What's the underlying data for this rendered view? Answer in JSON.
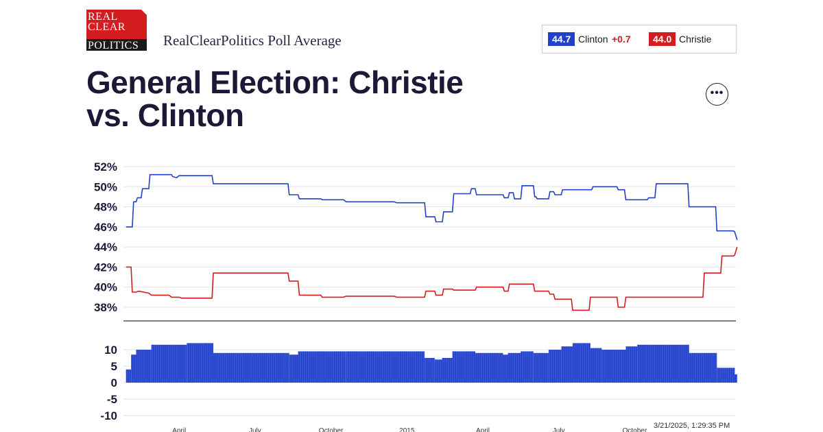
{
  "brand": {
    "logo_lines": [
      "REAL",
      "CLEAR",
      "POLITICS"
    ]
  },
  "header": {
    "subtitle": "RealClearPolitics Poll Average"
  },
  "legend": {
    "clinton": {
      "value": "44.7",
      "name": "Clinton",
      "change": "+0.7",
      "color": "#2240c8"
    },
    "christie": {
      "value": "44.0",
      "name": "Christie",
      "color": "#d31c1e"
    }
  },
  "title": "General Election: Christie vs. Clinton",
  "menu": {
    "more_label": "•••"
  },
  "timestamp": "3/21/2025, 1:29:35 PM",
  "chart_data": [
    {
      "type": "line",
      "title": "",
      "ylim": [
        37,
        53
      ],
      "y_ticks": [
        "52%",
        "50%",
        "48%",
        "46%",
        "44%",
        "42%",
        "40%",
        "38%"
      ],
      "y_tick_values": [
        52,
        50,
        48,
        46,
        44,
        42,
        40,
        38
      ],
      "x_ticks": [
        "April",
        "July",
        "October",
        "2015",
        "April",
        "July",
        "October"
      ],
      "x_tick_values": [
        0.5,
        3.5,
        6.5,
        9.5,
        12.5,
        15.5,
        18.5
      ],
      "xlim": [
        -1.7,
        22.5
      ],
      "grid": true,
      "series": [
        {
          "name": "Clinton",
          "color": "#2240c8",
          "points": [
            [
              -1.6,
              46
            ],
            [
              -1.35,
              46
            ],
            [
              -1.3,
              48.5
            ],
            [
              -1.2,
              48.5
            ],
            [
              -1.15,
              48.9
            ],
            [
              -1.0,
              48.9
            ],
            [
              -0.95,
              49.8
            ],
            [
              -0.7,
              49.8
            ],
            [
              -0.65,
              51.2
            ],
            [
              0.2,
              51.2
            ],
            [
              0.25,
              51.0
            ],
            [
              0.4,
              50.9
            ],
            [
              0.5,
              51.1
            ],
            [
              1.8,
              51.1
            ],
            [
              1.85,
              50.3
            ],
            [
              4.8,
              50.3
            ],
            [
              4.85,
              49.2
            ],
            [
              5.2,
              49.2
            ],
            [
              5.25,
              48.8
            ],
            [
              6.1,
              48.8
            ],
            [
              6.15,
              48.7
            ],
            [
              7.0,
              48.7
            ],
            [
              7.1,
              48.5
            ],
            [
              9.0,
              48.5
            ],
            [
              9.1,
              48.4
            ],
            [
              10.2,
              48.4
            ],
            [
              10.25,
              47.0
            ],
            [
              10.6,
              47.0
            ],
            [
              10.65,
              46.5
            ],
            [
              10.9,
              46.5
            ],
            [
              10.95,
              47.5
            ],
            [
              11.3,
              47.5
            ],
            [
              11.35,
              49.3
            ],
            [
              12.0,
              49.3
            ],
            [
              12.05,
              49.8
            ],
            [
              12.2,
              49.8
            ],
            [
              12.25,
              49.2
            ],
            [
              13.3,
              49.2
            ],
            [
              13.35,
              48.9
            ],
            [
              13.5,
              48.9
            ],
            [
              13.55,
              49.4
            ],
            [
              13.7,
              49.4
            ],
            [
              13.75,
              48.8
            ],
            [
              14.0,
              48.8
            ],
            [
              14.05,
              50.1
            ],
            [
              14.5,
              50.1
            ],
            [
              14.55,
              49.0
            ],
            [
              14.6,
              49.0
            ],
            [
              14.65,
              48.8
            ],
            [
              15.1,
              48.8
            ],
            [
              15.15,
              49.5
            ],
            [
              15.3,
              49.5
            ],
            [
              15.35,
              49.2
            ],
            [
              15.6,
              49.2
            ],
            [
              15.65,
              49.7
            ],
            [
              16.8,
              49.7
            ],
            [
              16.85,
              50.0
            ],
            [
              17.8,
              50.0
            ],
            [
              17.85,
              49.7
            ],
            [
              18.1,
              49.7
            ],
            [
              18.15,
              48.7
            ],
            [
              19.0,
              48.7
            ],
            [
              19.05,
              48.9
            ],
            [
              19.3,
              48.9
            ],
            [
              19.35,
              50.3
            ],
            [
              20.6,
              50.3
            ],
            [
              20.65,
              48.0
            ],
            [
              21.7,
              48.0
            ],
            [
              21.75,
              45.6
            ],
            [
              22.4,
              45.6
            ],
            [
              22.45,
              45.5
            ],
            [
              22.55,
              44.7
            ]
          ]
        },
        {
          "name": "Christie",
          "color": "#d31c1e",
          "points": [
            [
              -1.6,
              42
            ],
            [
              -1.4,
              42
            ],
            [
              -1.35,
              39.5
            ],
            [
              -1.2,
              39.5
            ],
            [
              -1.1,
              39.6
            ],
            [
              -0.7,
              39.4
            ],
            [
              -0.6,
              39.2
            ],
            [
              0.1,
              39.2
            ],
            [
              0.2,
              39.0
            ],
            [
              0.5,
              39.0
            ],
            [
              0.6,
              38.9
            ],
            [
              1.8,
              38.9
            ],
            [
              1.85,
              41.4
            ],
            [
              4.8,
              41.4
            ],
            [
              4.85,
              40.6
            ],
            [
              5.2,
              40.6
            ],
            [
              5.25,
              39.2
            ],
            [
              6.1,
              39.2
            ],
            [
              6.15,
              39.0
            ],
            [
              7.0,
              39.0
            ],
            [
              7.1,
              39.1
            ],
            [
              9.0,
              39.1
            ],
            [
              9.1,
              39.0
            ],
            [
              10.2,
              39.0
            ],
            [
              10.25,
              39.6
            ],
            [
              10.6,
              39.6
            ],
            [
              10.65,
              39.2
            ],
            [
              10.9,
              39.2
            ],
            [
              10.95,
              39.8
            ],
            [
              11.3,
              39.8
            ],
            [
              11.35,
              39.7
            ],
            [
              12.2,
              39.7
            ],
            [
              12.25,
              40.0
            ],
            [
              13.3,
              40.0
            ],
            [
              13.35,
              39.6
            ],
            [
              13.5,
              39.6
            ],
            [
              13.55,
              40.3
            ],
            [
              14.5,
              40.3
            ],
            [
              14.55,
              39.6
            ],
            [
              15.1,
              39.6
            ],
            [
              15.15,
              39.3
            ],
            [
              15.3,
              39.3
            ],
            [
              15.35,
              38.8
            ],
            [
              16.0,
              38.8
            ],
            [
              16.05,
              37.7
            ],
            [
              16.7,
              37.7
            ],
            [
              16.75,
              39.0
            ],
            [
              17.8,
              39.0
            ],
            [
              17.85,
              38.0
            ],
            [
              18.1,
              38.0
            ],
            [
              18.15,
              39.0
            ],
            [
              19.5,
              39.0
            ],
            [
              19.6,
              39.0
            ],
            [
              21.2,
              39.0
            ],
            [
              21.25,
              41.4
            ],
            [
              21.9,
              41.4
            ],
            [
              21.95,
              43.1
            ],
            [
              22.4,
              43.1
            ],
            [
              22.45,
              43.2
            ],
            [
              22.55,
              44.0
            ]
          ]
        }
      ]
    },
    {
      "type": "bar",
      "title": "",
      "ylim": [
        -11,
        12
      ],
      "y_ticks": [
        "10",
        "5",
        "0",
        "-5",
        "-10"
      ],
      "y_tick_values": [
        10,
        5,
        0,
        -5,
        -10
      ],
      "color": "#2240c8",
      "segments": [
        [
          -1.6,
          -1.4,
          4
        ],
        [
          -1.4,
          -1.2,
          8.5
        ],
        [
          -1.2,
          -0.9,
          10
        ],
        [
          -0.9,
          -0.6,
          10
        ],
        [
          -0.6,
          0.8,
          11.5
        ],
        [
          0.8,
          1.85,
          12
        ],
        [
          1.85,
          4.85,
          9
        ],
        [
          4.85,
          5.2,
          8.5
        ],
        [
          5.2,
          6.1,
          9.5
        ],
        [
          6.1,
          7.1,
          9.5
        ],
        [
          7.1,
          10.2,
          9.5
        ],
        [
          10.2,
          10.6,
          7.5
        ],
        [
          10.6,
          10.9,
          7
        ],
        [
          10.9,
          11.3,
          7.5
        ],
        [
          11.3,
          12.2,
          9.5
        ],
        [
          12.2,
          13.3,
          9
        ],
        [
          13.3,
          13.5,
          8.5
        ],
        [
          13.5,
          14.0,
          9
        ],
        [
          14.0,
          14.5,
          9.5
        ],
        [
          14.5,
          15.1,
          9
        ],
        [
          15.1,
          15.3,
          10
        ],
        [
          15.3,
          15.6,
          10
        ],
        [
          15.6,
          16.05,
          11
        ],
        [
          16.05,
          16.75,
          12
        ],
        [
          16.75,
          17.2,
          10.5
        ],
        [
          17.2,
          18.15,
          10
        ],
        [
          18.15,
          18.6,
          11
        ],
        [
          18.6,
          20.65,
          11.5
        ],
        [
          20.65,
          21.75,
          9
        ],
        [
          21.75,
          22.45,
          4.5
        ],
        [
          22.45,
          22.55,
          2.5
        ]
      ]
    }
  ]
}
